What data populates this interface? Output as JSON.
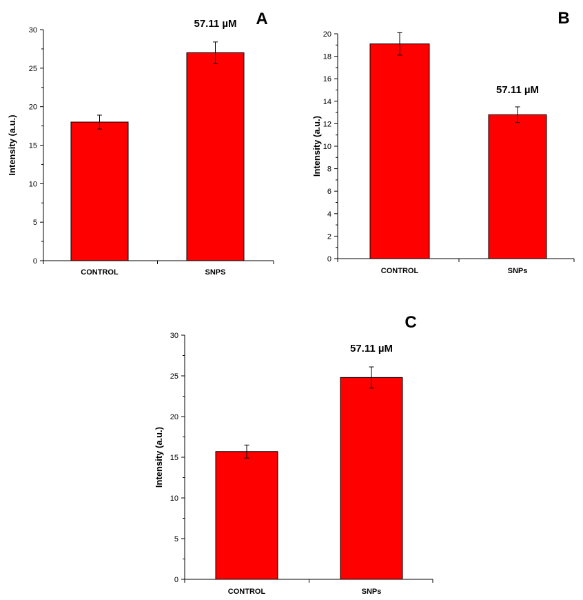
{
  "chart_data": [
    {
      "type": "bar",
      "panel": "A",
      "categories": [
        "CONTROL",
        "SNPS"
      ],
      "values": [
        18.0,
        27.0
      ],
      "errors": [
        0.9,
        1.4
      ],
      "ylabel": "Intensity (a.u.)",
      "xlabel": "",
      "ylim": [
        0,
        30
      ],
      "yticks": [
        0,
        5,
        10,
        15,
        20,
        25,
        30
      ],
      "annotation": "57.11 µM",
      "bar_color": "#ff0000"
    },
    {
      "type": "bar",
      "panel": "B",
      "categories": [
        "CONTROL",
        "SNPs"
      ],
      "values": [
        19.1,
        12.8
      ],
      "errors": [
        1.0,
        0.7
      ],
      "ylabel": "Intensity (a.u.)",
      "xlabel": "",
      "ylim": [
        0,
        20
      ],
      "yticks": [
        0,
        2,
        4,
        6,
        8,
        10,
        12,
        14,
        16,
        18,
        20
      ],
      "annotation": "57.11 µM",
      "bar_color": "#ff0000"
    },
    {
      "type": "bar",
      "panel": "C",
      "categories": [
        "CONTROL",
        "SNPs"
      ],
      "values": [
        15.7,
        24.8
      ],
      "errors": [
        0.8,
        1.3
      ],
      "ylabel": "Intensity (a.u.)",
      "xlabel": "",
      "ylim": [
        0,
        30
      ],
      "yticks": [
        0,
        5,
        10,
        15,
        20,
        25,
        30
      ],
      "annotation": "57.11 µM",
      "bar_color": "#ff0000"
    }
  ]
}
